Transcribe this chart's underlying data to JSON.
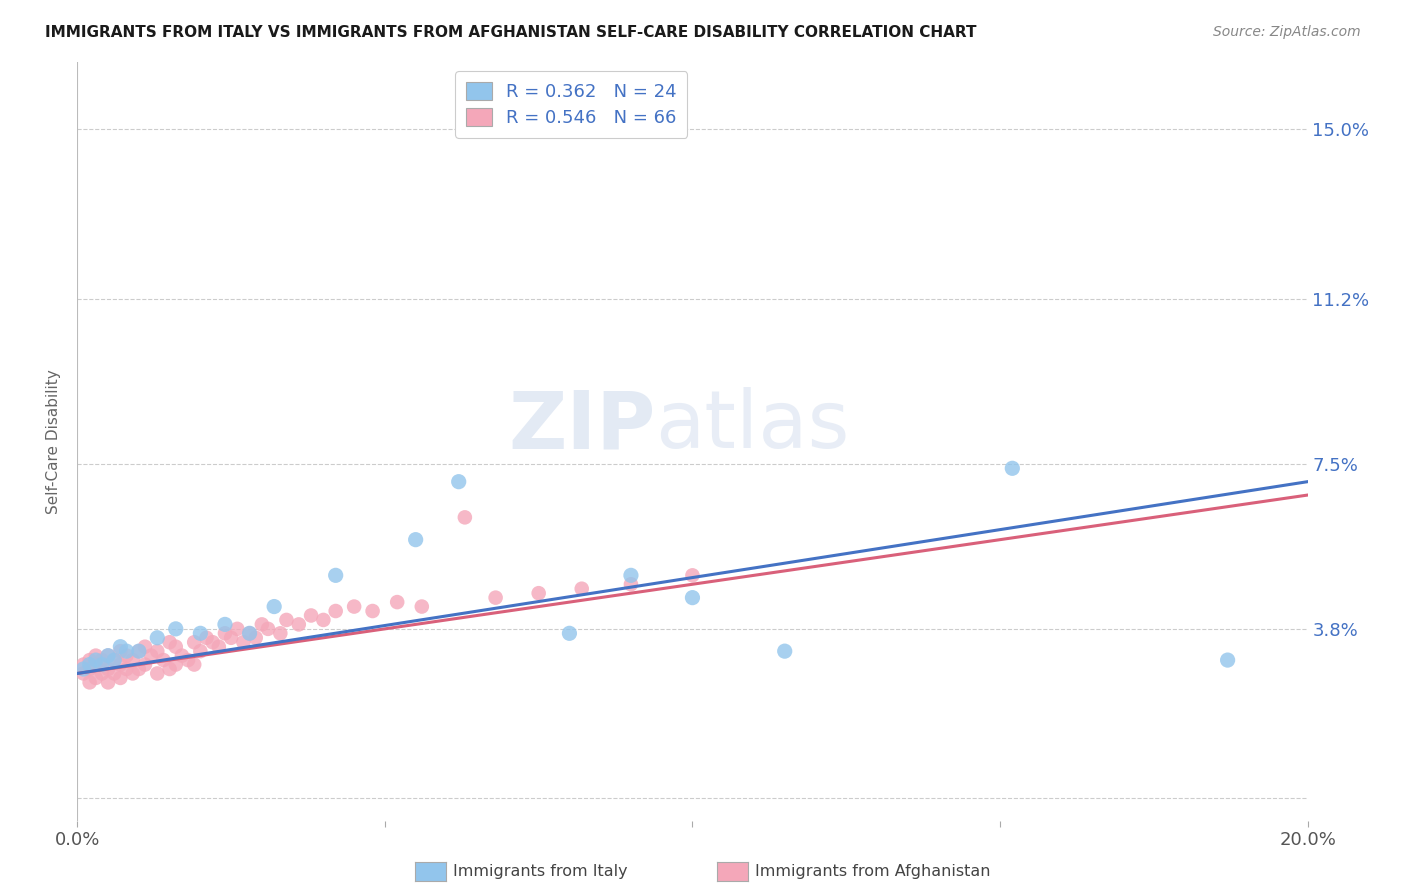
{
  "title": "IMMIGRANTS FROM ITALY VS IMMIGRANTS FROM AFGHANISTAN SELF-CARE DISABILITY CORRELATION CHART",
  "source": "Source: ZipAtlas.com",
  "ylabel": "Self-Care Disability",
  "italy_R": 0.362,
  "italy_N": 24,
  "afghan_R": 0.546,
  "afghan_N": 66,
  "italy_color": "#92C5EC",
  "afghan_color": "#F4A7B9",
  "italy_line_color": "#4472C4",
  "afghan_line_color": "#D9607A",
  "background_color": "#ffffff",
  "xlim": [
    0.0,
    0.2
  ],
  "ylim": [
    -0.005,
    0.165
  ],
  "ytick_vals": [
    0.0,
    0.038,
    0.075,
    0.112,
    0.15
  ],
  "ytick_labels": [
    "",
    "3.8%",
    "7.5%",
    "11.2%",
    "15.0%"
  ],
  "xtick_vals": [
    0.0,
    0.05,
    0.1,
    0.15,
    0.2
  ],
  "xtick_labels": [
    "0.0%",
    "",
    "",
    "",
    "20.0%"
  ],
  "italy_x": [
    0.001,
    0.002,
    0.003,
    0.004,
    0.005,
    0.006,
    0.007,
    0.008,
    0.01,
    0.013,
    0.016,
    0.02,
    0.024,
    0.028,
    0.032,
    0.042,
    0.055,
    0.062,
    0.08,
    0.09,
    0.1,
    0.115,
    0.152,
    0.187
  ],
  "italy_y": [
    0.029,
    0.03,
    0.031,
    0.03,
    0.032,
    0.031,
    0.034,
    0.033,
    0.033,
    0.036,
    0.038,
    0.037,
    0.039,
    0.037,
    0.043,
    0.05,
    0.058,
    0.071,
    0.037,
    0.05,
    0.045,
    0.033,
    0.074,
    0.031
  ],
  "afghan_x": [
    0.001,
    0.001,
    0.002,
    0.002,
    0.002,
    0.003,
    0.003,
    0.003,
    0.004,
    0.004,
    0.005,
    0.005,
    0.005,
    0.006,
    0.006,
    0.007,
    0.007,
    0.007,
    0.008,
    0.008,
    0.009,
    0.009,
    0.01,
    0.01,
    0.011,
    0.011,
    0.012,
    0.013,
    0.013,
    0.014,
    0.015,
    0.015,
    0.016,
    0.016,
    0.017,
    0.018,
    0.019,
    0.019,
    0.02,
    0.021,
    0.022,
    0.023,
    0.024,
    0.025,
    0.026,
    0.027,
    0.028,
    0.029,
    0.03,
    0.031,
    0.033,
    0.034,
    0.036,
    0.038,
    0.04,
    0.042,
    0.045,
    0.048,
    0.052,
    0.056,
    0.063,
    0.068,
    0.075,
    0.082,
    0.09,
    0.1
  ],
  "afghan_y": [
    0.028,
    0.03,
    0.026,
    0.029,
    0.031,
    0.027,
    0.03,
    0.032,
    0.028,
    0.031,
    0.026,
    0.029,
    0.032,
    0.028,
    0.031,
    0.027,
    0.03,
    0.033,
    0.029,
    0.032,
    0.028,
    0.031,
    0.029,
    0.033,
    0.03,
    0.034,
    0.032,
    0.028,
    0.033,
    0.031,
    0.029,
    0.035,
    0.03,
    0.034,
    0.032,
    0.031,
    0.03,
    0.035,
    0.033,
    0.036,
    0.035,
    0.034,
    0.037,
    0.036,
    0.038,
    0.035,
    0.037,
    0.036,
    0.039,
    0.038,
    0.037,
    0.04,
    0.039,
    0.041,
    0.04,
    0.042,
    0.043,
    0.042,
    0.044,
    0.043,
    0.063,
    0.045,
    0.046,
    0.047,
    0.048,
    0.05
  ],
  "italy_line_x0": 0.0,
  "italy_line_y0": 0.028,
  "italy_line_x1": 0.2,
  "italy_line_y1": 0.071,
  "afghan_line_x0": 0.0,
  "afghan_line_y0": 0.028,
  "afghan_line_x1": 0.2,
  "afghan_line_y1": 0.068
}
